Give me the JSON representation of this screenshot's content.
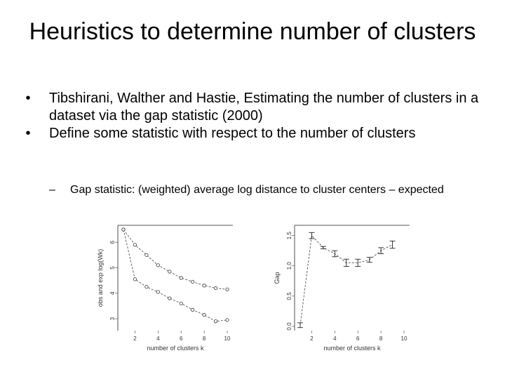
{
  "slide": {
    "title": "Heuristics to determine number of clusters",
    "bullets": [
      "Tibshirani, Walther and Hastie, Estimating the number of clusters in a dataset via the gap statistic (2000)",
      "Define some statistic with respect to the number of clusters"
    ],
    "sub_bullet": "Gap statistic: (weighted) average log distance to cluster centers – expected",
    "bullet_mark": "•",
    "sub_mark": "–"
  },
  "chart_data": [
    {
      "type": "line",
      "xlabel": "number of clusters k",
      "ylabel": "obs and exp log(Wk)",
      "xticks": [
        "2",
        "4",
        "6",
        "8",
        "10"
      ],
      "yticks": [
        "3",
        "4",
        "5",
        "6"
      ],
      "xlim": [
        1,
        10
      ],
      "ylim": [
        2.7,
        6.5
      ],
      "series": [
        {
          "marker": "o",
          "x": [
            1,
            2,
            3,
            4,
            5,
            6,
            7,
            8,
            9,
            10
          ],
          "y": [
            6.5,
            5.9,
            5.5,
            5.1,
            4.85,
            4.6,
            4.45,
            4.3,
            4.2,
            4.15
          ]
        },
        {
          "marker": "o",
          "x": [
            1,
            2,
            3,
            4,
            5,
            6,
            7,
            8,
            9,
            10
          ],
          "y": [
            6.5,
            4.55,
            4.25,
            4.05,
            3.8,
            3.6,
            3.35,
            3.15,
            2.9,
            2.95
          ]
        }
      ]
    },
    {
      "type": "line",
      "xlabel": "number of clusters k",
      "ylabel": "Gap",
      "xticks": [
        "2",
        "4",
        "6",
        "8",
        "10"
      ],
      "yticks": [
        "0.0",
        "0.5",
        "1.0",
        "1.5"
      ],
      "xlim": [
        1,
        10
      ],
      "ylim": [
        0,
        1.6
      ],
      "series": [
        {
          "x": [
            1,
            2,
            3,
            4,
            5,
            6,
            7,
            8,
            9
          ],
          "y": [
            0.02,
            1.5,
            1.3,
            1.2,
            1.05,
            1.05,
            1.1,
            1.25,
            1.35
          ],
          "err": [
            0.04,
            0.05,
            0.02,
            0.05,
            0.06,
            0.06,
            0.04,
            0.05,
            0.06
          ]
        }
      ]
    }
  ]
}
